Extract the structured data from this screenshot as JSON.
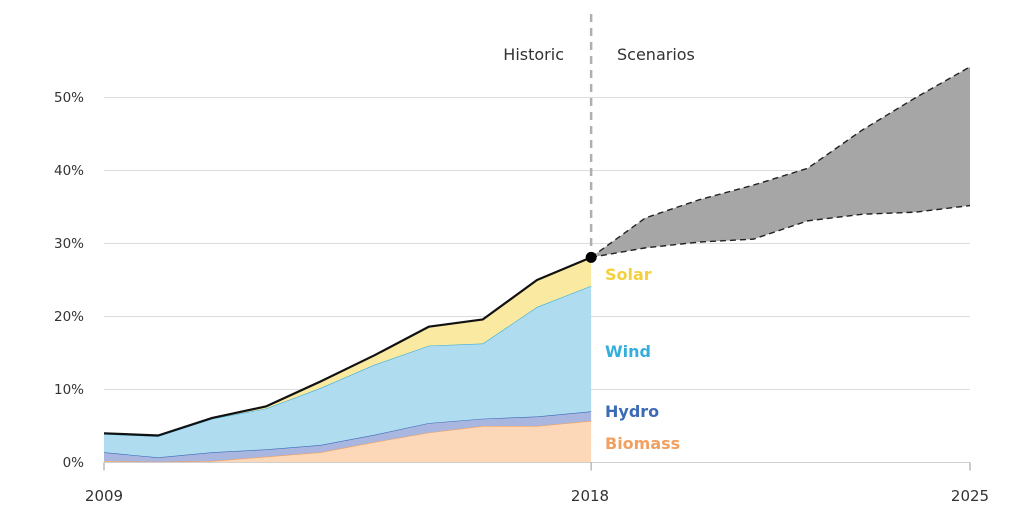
{
  "chart_data": {
    "type": "area",
    "stacked": true,
    "x_historic": [
      2009,
      2010,
      2011,
      2012,
      2013,
      2014,
      2015,
      2016,
      2017,
      2018
    ],
    "series": [
      {
        "name": "Biomass",
        "color": "#f2a060",
        "fill": "#fcd8b8",
        "values": [
          0.2,
          0.1,
          0.2,
          0.8,
          1.4,
          2.8,
          4.1,
          5.0,
          5.0,
          5.7
        ]
      },
      {
        "name": "Hydro",
        "color": "#3c6ab6",
        "fill": "#a9b6e0",
        "values": [
          1.2,
          0.6,
          1.2,
          1.0,
          1.0,
          1.0,
          1.3,
          1.0,
          1.3,
          1.3
        ]
      },
      {
        "name": "Wind",
        "color": "#36aedc",
        "fill": "#b0dcf0",
        "values": [
          2.5,
          2.9,
          4.6,
          5.6,
          7.8,
          9.6,
          10.6,
          10.3,
          15.0,
          17.2
        ]
      },
      {
        "name": "Solar",
        "color": "#f4d03f",
        "fill": "#fae9a0",
        "values": [
          0.1,
          0.1,
          0.1,
          0.3,
          0.9,
          1.3,
          2.6,
          3.3,
          3.7,
          3.9
        ]
      }
    ],
    "total": [
      4.0,
      3.7,
      6.1,
      7.7,
      11.1,
      14.7,
      18.6,
      19.6,
      25.0,
      28.1
    ],
    "scenario": {
      "x": [
        2018,
        2019,
        2020,
        2021,
        2022,
        2023,
        2024,
        2025
      ],
      "upper": [
        28.1,
        33.5,
        36.0,
        38.0,
        40.3,
        45.5,
        50.0,
        54.2
      ],
      "lower": [
        28.1,
        29.4,
        30.2,
        30.6,
        33.1,
        34.0,
        34.3,
        35.2
      ],
      "fill": "#a6a6a6"
    },
    "divider_x": 2018,
    "period_labels": {
      "historic": "Historic",
      "scenarios": "Scenarios"
    },
    "xlim": [
      2009,
      2025
    ],
    "ylim": [
      0,
      55
    ],
    "x_ticks": [
      "2009",
      "2018",
      "2025"
    ],
    "y_ticks": [
      "0%",
      "10%",
      "20%",
      "30%",
      "40%",
      "50%"
    ],
    "grid": true
  }
}
